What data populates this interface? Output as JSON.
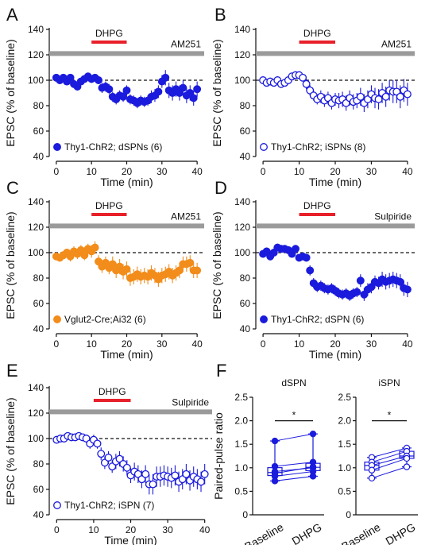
{
  "chart_data": [
    {
      "type": "scatter",
      "panel": "A",
      "ylabel": "EPSC (% of baseline)",
      "xlabel": "Time (min)",
      "xlim": [
        -2,
        42
      ],
      "ylim": [
        40,
        140
      ],
      "xticks": [
        "0",
        "10",
        "20",
        "30",
        "40"
      ],
      "yticks": [
        "40",
        "60",
        "80",
        "100",
        "120",
        "140"
      ],
      "drug_bar_label": "DHPG",
      "drug_bar_x": [
        10,
        20
      ],
      "condition_label": "AM251",
      "baseline_y": 100,
      "series": [
        {
          "name": "Thy1-ChR2; dSPNs (6)",
          "filled": true,
          "color": "#1b1bdd",
          "x": [
            0,
            1,
            2,
            3,
            4,
            5,
            6,
            7,
            8,
            9,
            10,
            11,
            12,
            13,
            14,
            15,
            16,
            17,
            18,
            19,
            20,
            21,
            22,
            23,
            24,
            25,
            26,
            27,
            28,
            29,
            30,
            31,
            32,
            33,
            34,
            35,
            36,
            37,
            38,
            39,
            40
          ],
          "y": [
            102,
            100,
            102,
            99,
            102,
            97,
            95,
            99,
            101,
            103,
            101,
            102,
            100,
            94,
            95,
            93,
            87,
            85,
            88,
            87,
            92,
            85,
            84,
            82,
            84,
            83,
            84,
            87,
            88,
            91,
            99,
            102,
            92,
            90,
            93,
            90,
            94,
            88,
            90,
            86,
            93
          ],
          "err": [
            3,
            3,
            3,
            3,
            3,
            3,
            3,
            3,
            3,
            3,
            3,
            3,
            3,
            4,
            4,
            4,
            4,
            4,
            4,
            4,
            4,
            4,
            4,
            4,
            4,
            4,
            4,
            5,
            5,
            5,
            5,
            6,
            6,
            6,
            6,
            6,
            6,
            6,
            6,
            6,
            6
          ]
        }
      ]
    },
    {
      "type": "scatter",
      "panel": "B",
      "ylabel": "EPSC (% of baseline)",
      "xlabel": "Time (min)",
      "xlim": [
        -2,
        42
      ],
      "ylim": [
        40,
        140
      ],
      "xticks": [
        "0",
        "10",
        "20",
        "30",
        "40"
      ],
      "yticks": [
        "40",
        "60",
        "80",
        "100",
        "120",
        "140"
      ],
      "drug_bar_label": "DHPG",
      "drug_bar_x": [
        10,
        20
      ],
      "condition_label": "AM251",
      "baseline_y": 100,
      "series": [
        {
          "name": "Thy1-ChR2; iSPNs (8)",
          "filled": false,
          "color": "#1b1bdd",
          "x": [
            0,
            1,
            2,
            3,
            4,
            5,
            6,
            7,
            8,
            9,
            10,
            11,
            12,
            13,
            14,
            15,
            16,
            17,
            18,
            19,
            20,
            21,
            22,
            23,
            24,
            25,
            26,
            27,
            28,
            29,
            30,
            31,
            32,
            33,
            34,
            35,
            36,
            37,
            38,
            39,
            40
          ],
          "y": [
            100,
            98,
            99,
            98,
            100,
            97,
            98,
            100,
            103,
            104,
            104,
            102,
            97,
            92,
            88,
            85,
            87,
            84,
            86,
            82,
            85,
            84,
            85,
            82,
            86,
            83,
            84,
            87,
            82,
            85,
            89,
            86,
            85,
            90,
            87,
            92,
            91,
            91,
            87,
            92,
            89
          ],
          "err": [
            3,
            3,
            3,
            3,
            3,
            3,
            3,
            3,
            3,
            3,
            3,
            3,
            4,
            4,
            4,
            4,
            5,
            5,
            5,
            5,
            5,
            6,
            6,
            6,
            6,
            6,
            6,
            7,
            7,
            7,
            7,
            8,
            8,
            8,
            8,
            8,
            9,
            9,
            9,
            9,
            9
          ]
        }
      ]
    },
    {
      "type": "scatter",
      "panel": "C",
      "ylabel": "EPSC (% of baseline)",
      "xlabel": "Time (min)",
      "xlim": [
        -2,
        42
      ],
      "ylim": [
        40,
        140
      ],
      "xticks": [
        "0",
        "10",
        "20",
        "30",
        "40"
      ],
      "yticks": [
        "40",
        "60",
        "80",
        "100",
        "120",
        "140"
      ],
      "drug_bar_label": "DHPG",
      "drug_bar_x": [
        10,
        20
      ],
      "condition_label": "AM251",
      "baseline_y": 100,
      "series": [
        {
          "name": "Vglut2-Cre;Ai32 (6)",
          "filled": true,
          "color": "#f28c1a",
          "x": [
            0,
            1,
            2,
            3,
            4,
            5,
            6,
            7,
            8,
            9,
            10,
            11,
            12,
            13,
            14,
            15,
            16,
            17,
            18,
            19,
            20,
            21,
            22,
            23,
            24,
            25,
            26,
            27,
            28,
            29,
            30,
            31,
            32,
            33,
            34,
            35,
            36,
            37,
            38,
            39,
            40
          ],
          "y": [
            97,
            96,
            98,
            100,
            97,
            101,
            99,
            102,
            98,
            103,
            101,
            104,
            93,
            89,
            92,
            88,
            91,
            86,
            89,
            85,
            87,
            80,
            81,
            83,
            81,
            82,
            81,
            84,
            82,
            79,
            82,
            83,
            85,
            82,
            84,
            86,
            91,
            91,
            92,
            86,
            86
          ],
          "err": [
            3,
            3,
            3,
            3,
            4,
            4,
            4,
            4,
            4,
            4,
            5,
            5,
            5,
            5,
            5,
            5,
            6,
            6,
            6,
            6,
            6,
            6,
            6,
            6,
            6,
            6,
            6,
            6,
            6,
            6,
            6,
            6,
            6,
            6,
            6,
            6,
            6,
            6,
            6,
            6,
            6
          ]
        }
      ]
    },
    {
      "type": "scatter",
      "panel": "D",
      "ylabel": "EPSC (% of baseline)",
      "xlabel": "Time (min)",
      "xlim": [
        -2,
        42
      ],
      "ylim": [
        40,
        140
      ],
      "xticks": [
        "0",
        "10",
        "20",
        "30",
        "40"
      ],
      "yticks": [
        "40",
        "60",
        "80",
        "100",
        "120",
        "140"
      ],
      "drug_bar_label": "DHPG",
      "drug_bar_x": [
        10,
        20
      ],
      "condition_label": "Sulpiride",
      "baseline_y": 100,
      "series": [
        {
          "name": "Thy1-ChR2; dSPN (6)",
          "filled": true,
          "color": "#1b1bdd",
          "x": [
            0,
            1,
            2,
            3,
            4,
            5,
            6,
            7,
            8,
            9,
            10,
            11,
            12,
            13,
            14,
            15,
            16,
            17,
            18,
            19,
            20,
            21,
            22,
            23,
            24,
            25,
            26,
            27,
            28,
            29,
            30,
            31,
            32,
            33,
            34,
            35,
            36,
            37,
            38,
            39,
            40
          ],
          "y": [
            99,
            101,
            97,
            100,
            104,
            103,
            103,
            102,
            99,
            103,
            96,
            97,
            96,
            86,
            76,
            73,
            74,
            72,
            71,
            72,
            70,
            68,
            67,
            68,
            66,
            68,
            69,
            78,
            67,
            71,
            73,
            77,
            76,
            79,
            77,
            78,
            79,
            78,
            77,
            72,
            71
          ],
          "err": [
            3,
            3,
            3,
            3,
            3,
            3,
            3,
            3,
            3,
            3,
            3,
            3,
            3,
            4,
            4,
            4,
            4,
            4,
            4,
            4,
            4,
            4,
            4,
            4,
            4,
            4,
            4,
            5,
            5,
            5,
            5,
            5,
            5,
            6,
            6,
            6,
            6,
            6,
            6,
            6,
            6
          ]
        }
      ]
    },
    {
      "type": "scatter",
      "panel": "E",
      "ylabel": "EPSC (% of baseline)",
      "xlabel": "Time (min)",
      "xlim": [
        -2,
        42
      ],
      "ylim": [
        40,
        140
      ],
      "xticks": [
        "0",
        "10",
        "20",
        "30",
        "40"
      ],
      "yticks": [
        "40",
        "60",
        "80",
        "100",
        "120",
        "140"
      ],
      "drug_bar_label": "DHPG",
      "drug_bar_x": [
        10,
        20
      ],
      "condition_label": "Sulpiride",
      "baseline_y": 100,
      "series": [
        {
          "name": "Thy1-ChR2; iSPN (7)",
          "filled": false,
          "color": "#1b1bdd",
          "x": [
            0,
            1,
            2,
            3,
            4,
            5,
            6,
            7,
            8,
            9,
            10,
            11,
            12,
            13,
            14,
            15,
            16,
            17,
            18,
            19,
            20,
            21,
            22,
            23,
            24,
            25,
            26,
            27,
            28,
            29,
            30,
            31,
            32,
            33,
            34,
            35,
            36,
            37,
            38,
            39,
            40
          ],
          "y": [
            99,
            100,
            100,
            102,
            101,
            101,
            102,
            101,
            100,
            96,
            99,
            96,
            88,
            81,
            85,
            78,
            82,
            84,
            80,
            77,
            71,
            74,
            72,
            68,
            72,
            64,
            64,
            70,
            70,
            71,
            70,
            69,
            71,
            66,
            68,
            72,
            67,
            70,
            68,
            66,
            72
          ],
          "err": [
            3,
            3,
            3,
            3,
            3,
            3,
            3,
            3,
            3,
            4,
            4,
            4,
            5,
            5,
            5,
            5,
            6,
            6,
            6,
            6,
            6,
            7,
            7,
            7,
            7,
            8,
            8,
            8,
            8,
            8,
            8,
            8,
            8,
            8,
            8,
            8,
            8,
            8,
            8,
            8,
            8
          ]
        }
      ]
    },
    {
      "type": "box",
      "panel": "F",
      "title": "dSPN",
      "ylabel": "Paired-pulse ratio",
      "categories": [
        "Baseline",
        "DHPG"
      ],
      "ylim": [
        0,
        2.5
      ],
      "yticks": [
        "0",
        "0.5",
        "1.0",
        "1.5",
        "2.0",
        "2.5"
      ],
      "significance": "*",
      "filled": true,
      "pairs": [
        [
          1.57,
          1.72
        ],
        [
          1.03,
          1.12
        ],
        [
          0.92,
          1.0
        ],
        [
          0.88,
          1.02
        ],
        [
          0.82,
          0.92
        ],
        [
          0.72,
          0.82
        ]
      ]
    },
    {
      "type": "box",
      "panel": "F",
      "title": "iSPN",
      "categories": [
        "Baseline",
        "DHPG"
      ],
      "ylim": [
        0,
        2.5
      ],
      "yticks": [
        "0",
        "0.5",
        "1.0",
        "1.5",
        "2.0",
        "2.5"
      ],
      "significance": "*",
      "filled": false,
      "pairs": [
        [
          1.22,
          1.42
        ],
        [
          1.12,
          1.35
        ],
        [
          1.05,
          1.25
        ],
        [
          0.95,
          1.2
        ],
        [
          0.78,
          1.02
        ]
      ]
    }
  ],
  "panel_letters": [
    "A",
    "B",
    "C",
    "D",
    "E",
    "F"
  ],
  "style": {
    "blue": "#1b1bdd",
    "orange": "#f28c1a",
    "drug_bar": "#e8202a",
    "condition_bar": "#9a9a9a"
  }
}
